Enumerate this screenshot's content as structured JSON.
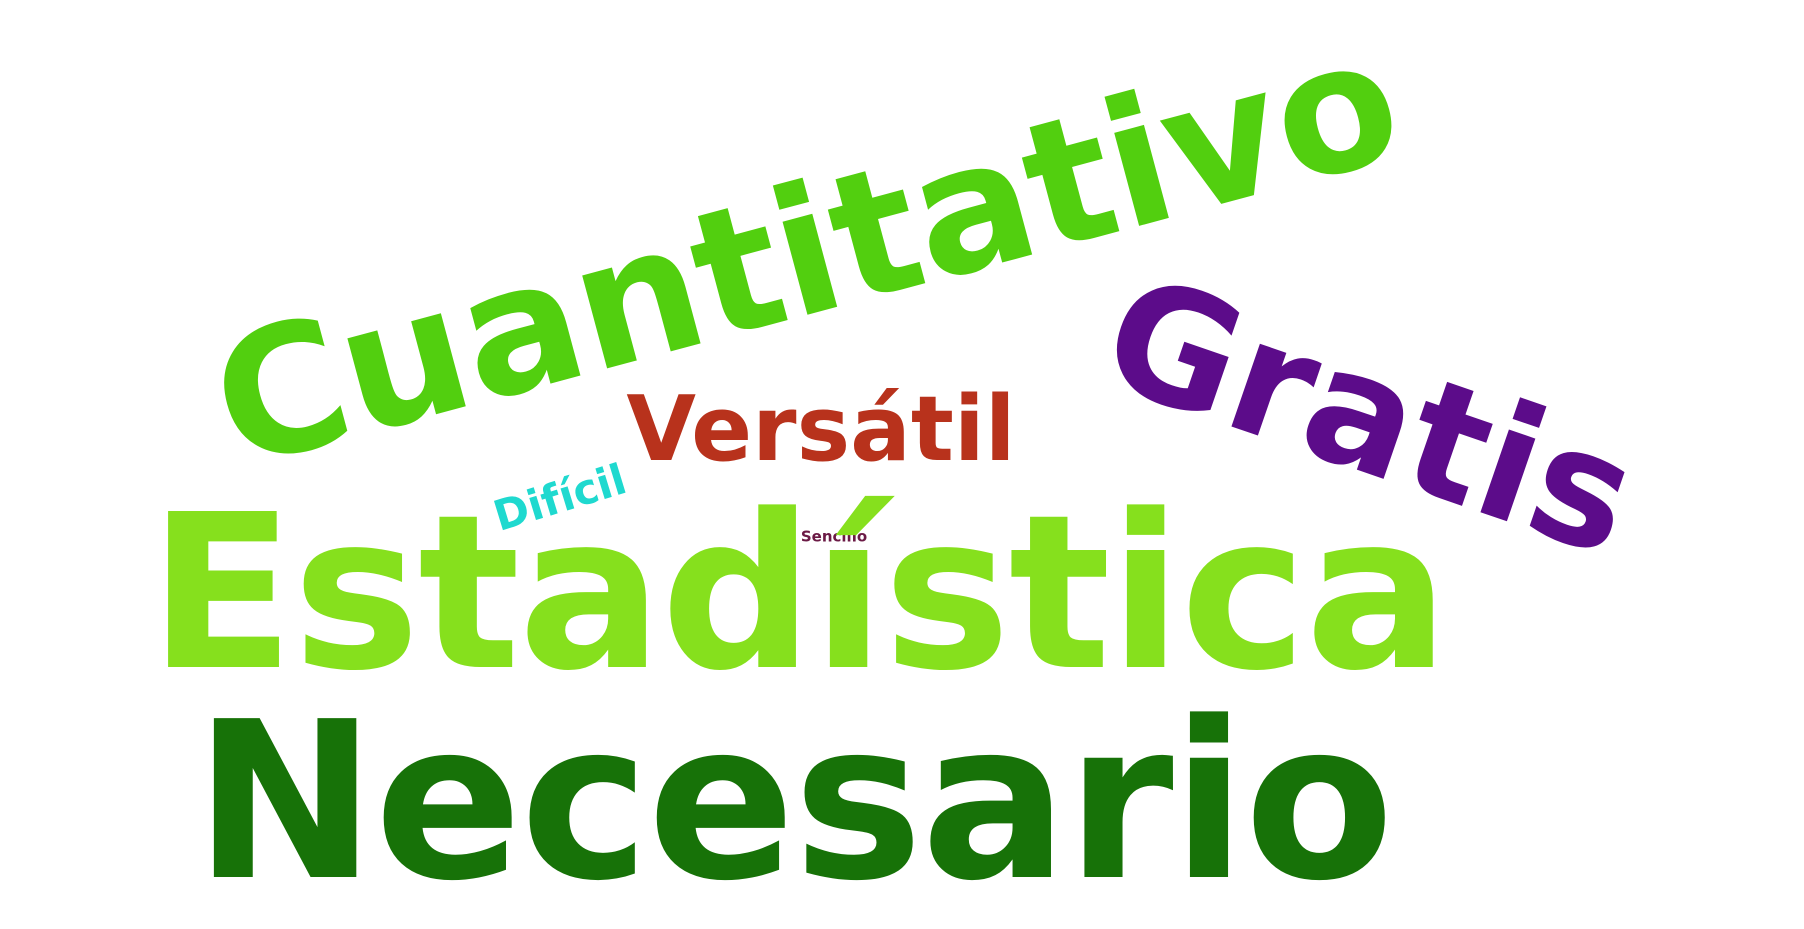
{
  "words": [
    {
      "id": "cuantitativo",
      "text": "Cuantitativo",
      "color": "#52cf0f"
    },
    {
      "id": "gratis",
      "text": "Gratis",
      "color": "#5c0c8a"
    },
    {
      "id": "versatil",
      "text": "Versátil",
      "color": "#b8321c"
    },
    {
      "id": "dificil",
      "text": "Difícil",
      "color": "#1fd9cf"
    },
    {
      "id": "sencillo",
      "text": "Sencillo",
      "color": "#6b1a45"
    },
    {
      "id": "estadistica",
      "text": "Estadística",
      "color": "#86e01d"
    },
    {
      "id": "necesario",
      "text": "Necesario",
      "color": "#177208"
    }
  ]
}
